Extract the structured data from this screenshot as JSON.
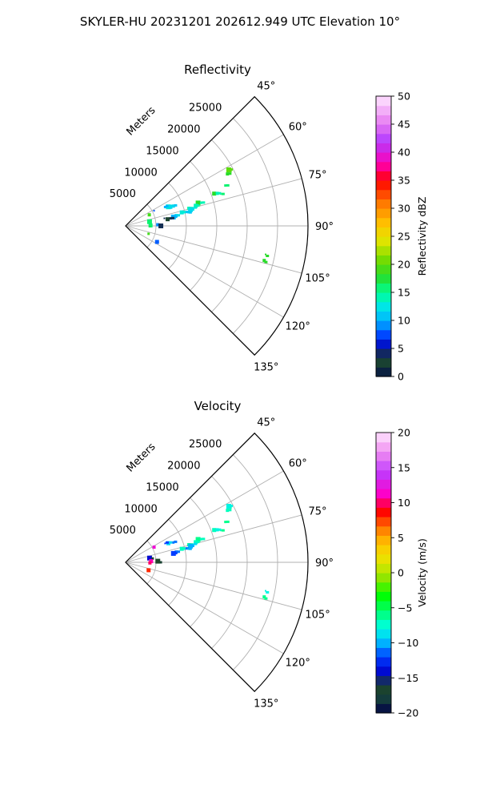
{
  "figure": {
    "title": "SKYLER-HU  20231201  202612.949 UTC Elevation 10°"
  },
  "chart_data": [
    {
      "type": "polar-sector",
      "title": "Reflectivity",
      "range_label": "Meters",
      "theta_range_deg": [
        45,
        135
      ],
      "theta_ticks_deg": [
        45,
        60,
        75,
        90,
        105,
        120,
        135
      ],
      "theta_tick_labels": [
        "45°",
        "60°",
        "75°",
        "90°",
        "105°",
        "120°",
        "135°"
      ],
      "r_range_m": [
        0,
        30000
      ],
      "r_ticks_m": [
        5000,
        10000,
        15000,
        20000,
        25000
      ],
      "r_tick_labels": [
        "5000",
        "10000",
        "15000",
        "20000",
        "25000"
      ],
      "grid": true,
      "colorbar": {
        "label": "Reflectivity dBZ",
        "min": 0,
        "max": 50,
        "ticks": [
          0,
          5,
          10,
          15,
          20,
          25,
          30,
          35,
          40,
          45,
          50
        ],
        "tick_labels": [
          "0",
          "5",
          "10",
          "15",
          "20",
          "25",
          "30",
          "35",
          "40",
          "45",
          "50"
        ]
      },
      "echoes": [
        {
          "az": 62.0,
          "r": 19000,
          "val": 19
        },
        {
          "az": 63.0,
          "r": 18800,
          "val": 18
        },
        {
          "az": 61.5,
          "r": 19300,
          "val": 20
        },
        {
          "az": 68.0,
          "r": 17700,
          "val": 16
        },
        {
          "az": 70.0,
          "r": 15500,
          "val": 18
        },
        {
          "az": 71.5,
          "r": 16500,
          "val": 16
        },
        {
          "az": 70.5,
          "r": 16000,
          "val": 14
        },
        {
          "az": 72.5,
          "r": 12500,
          "val": 18
        },
        {
          "az": 73.0,
          "r": 13000,
          "val": 14
        },
        {
          "az": 74.0,
          "r": 12000,
          "val": 14
        },
        {
          "az": 75.0,
          "r": 11500,
          "val": 13
        },
        {
          "az": 74.5,
          "r": 10800,
          "val": 15
        },
        {
          "az": 76.0,
          "r": 11000,
          "val": 12
        },
        {
          "az": 77.0,
          "r": 10000,
          "val": 11
        },
        {
          "az": 76.5,
          "r": 9500,
          "val": 13
        },
        {
          "az": 78.0,
          "r": 10500,
          "val": 11
        },
        {
          "az": 78.5,
          "r": 8500,
          "val": 12
        },
        {
          "az": 79.5,
          "r": 8000,
          "val": 10
        },
        {
          "az": 80.5,
          "r": 7500,
          "val": 4
        },
        {
          "az": 81.0,
          "r": 7000,
          "val": 3
        },
        {
          "az": 79.0,
          "r": 6500,
          "val": 4
        },
        {
          "az": 67.5,
          "r": 8500,
          "val": 11
        },
        {
          "az": 66.0,
          "r": 7700,
          "val": 13
        },
        {
          "az": 64.5,
          "r": 7200,
          "val": 10
        },
        {
          "az": 67.0,
          "r": 8000,
          "val": 12
        },
        {
          "az": 62.0,
          "r": 5300,
          "val": 8
        },
        {
          "az": 65.0,
          "r": 4300,
          "val": 19
        },
        {
          "az": 80.0,
          "r": 4000,
          "val": 16
        },
        {
          "az": 87.5,
          "r": 4200,
          "val": 14
        },
        {
          "az": 89.0,
          "r": 4100,
          "val": 16
        },
        {
          "az": 91.5,
          "r": 4000,
          "val": 17
        },
        {
          "az": 88.0,
          "r": 5300,
          "val": 9
        },
        {
          "az": 90.0,
          "r": 5800,
          "val": 4
        },
        {
          "az": 109.0,
          "r": 4000,
          "val": 19
        },
        {
          "az": 117.0,
          "r": 5800,
          "val": 8
        },
        {
          "az": 101.5,
          "r": 23500,
          "val": 18
        },
        {
          "az": 104.0,
          "r": 23500,
          "val": 18
        }
      ]
    },
    {
      "type": "polar-sector",
      "title": "Velocity",
      "range_label": "Meters",
      "theta_range_deg": [
        45,
        135
      ],
      "theta_ticks_deg": [
        45,
        60,
        75,
        90,
        105,
        120,
        135
      ],
      "theta_tick_labels": [
        "45°",
        "60°",
        "75°",
        "90°",
        "105°",
        "120°",
        "135°"
      ],
      "r_range_m": [
        0,
        30000
      ],
      "r_ticks_m": [
        5000,
        10000,
        15000,
        20000,
        25000
      ],
      "r_tick_labels": [
        "5000",
        "10000",
        "15000",
        "20000",
        "25000"
      ],
      "grid": true,
      "colorbar": {
        "label": "Velocity (m/s)",
        "min": -20,
        "max": 20,
        "ticks": [
          -20,
          -15,
          -10,
          -5,
          0,
          5,
          10,
          15,
          20
        ],
        "tick_labels": [
          "−20",
          "−15",
          "−10",
          "−5",
          "0",
          "5",
          "10",
          "15",
          "20"
        ]
      },
      "echoes": [
        {
          "az": 62.0,
          "r": 19000,
          "val": -6
        },
        {
          "az": 63.0,
          "r": 18800,
          "val": -7
        },
        {
          "az": 61.5,
          "r": 19300,
          "val": -8
        },
        {
          "az": 68.0,
          "r": 17700,
          "val": -6
        },
        {
          "az": 70.0,
          "r": 15500,
          "val": -7
        },
        {
          "az": 71.5,
          "r": 16500,
          "val": -6
        },
        {
          "az": 70.5,
          "r": 16000,
          "val": -8
        },
        {
          "az": 72.5,
          "r": 12500,
          "val": -6
        },
        {
          "az": 73.0,
          "r": 13000,
          "val": -7
        },
        {
          "az": 74.0,
          "r": 12000,
          "val": -7
        },
        {
          "az": 75.0,
          "r": 11500,
          "val": -9
        },
        {
          "az": 74.5,
          "r": 10800,
          "val": -6
        },
        {
          "az": 76.0,
          "r": 11000,
          "val": -10
        },
        {
          "az": 77.0,
          "r": 10000,
          "val": -11
        },
        {
          "az": 76.5,
          "r": 9500,
          "val": -7
        },
        {
          "az": 78.0,
          "r": 10500,
          "val": -10
        },
        {
          "az": 78.5,
          "r": 8500,
          "val": -11
        },
        {
          "az": 79.5,
          "r": 8000,
          "val": -12
        },
        {
          "az": 67.5,
          "r": 8500,
          "val": -11
        },
        {
          "az": 66.0,
          "r": 7700,
          "val": -9
        },
        {
          "az": 64.5,
          "r": 7200,
          "val": -12
        },
        {
          "az": 62.0,
          "r": 5300,
          "val": 12
        },
        {
          "az": 80.0,
          "r": 4000,
          "val": -14
        },
        {
          "az": 82.0,
          "r": 4500,
          "val": -16
        },
        {
          "az": 87.5,
          "r": 4200,
          "val": 11
        },
        {
          "az": 89.0,
          "r": 4100,
          "val": 12
        },
        {
          "az": 91.5,
          "r": 4000,
          "val": 10
        },
        {
          "az": 88.0,
          "r": 5300,
          "val": -16
        },
        {
          "az": 90.0,
          "r": 5800,
          "val": -17
        },
        {
          "az": 109.0,
          "r": 4000,
          "val": 8
        },
        {
          "az": 101.5,
          "r": 23500,
          "val": -8
        },
        {
          "az": 104.0,
          "r": 23500,
          "val": -6
        }
      ]
    }
  ]
}
